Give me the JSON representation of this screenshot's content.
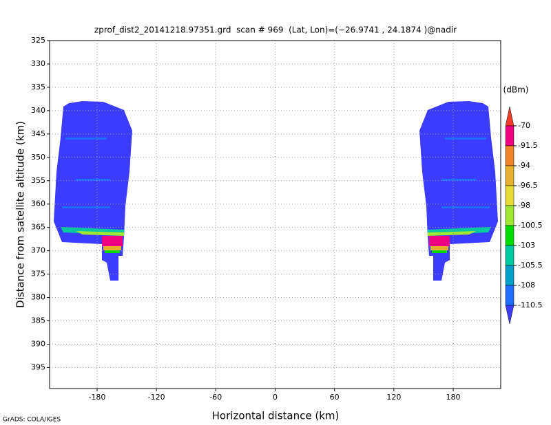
{
  "chart_data": {
    "type": "heatmap",
    "title": "zprof_dist2_20141218.97351.grd  scan # 969  (Lat, Lon)=(−26.9741 , 24.1874 )@nadir",
    "x_label": "Horizontal distance (km)",
    "y_label": "Distance from satellite altitude (km)",
    "footer": "GrADS: COLA/IGES",
    "xlim": [
      -228,
      228
    ],
    "xticks": [
      -180,
      -120,
      -60,
      0,
      60,
      120,
      180
    ],
    "ylim": [
      325,
      399.5
    ],
    "yticks": [
      325,
      330,
      335,
      340,
      345,
      350,
      355,
      360,
      365,
      370,
      375,
      380,
      385,
      390,
      395
    ],
    "y_reversed": true,
    "grid": true,
    "colorbar": {
      "label": "(dBm)",
      "levels": [
        -70,
        -91.5,
        -94,
        -96.5,
        -98,
        -100.5,
        -103,
        -105.5,
        -108,
        -110.5
      ],
      "colors": [
        "#f03c28",
        "#f00082",
        "#f08228",
        "#e6af2d",
        "#e6dc32",
        "#a0e632",
        "#00dc00",
        "#00c8a0",
        "#00a0c8",
        "#1e6eff",
        "#3c3cff"
      ]
    }
  }
}
